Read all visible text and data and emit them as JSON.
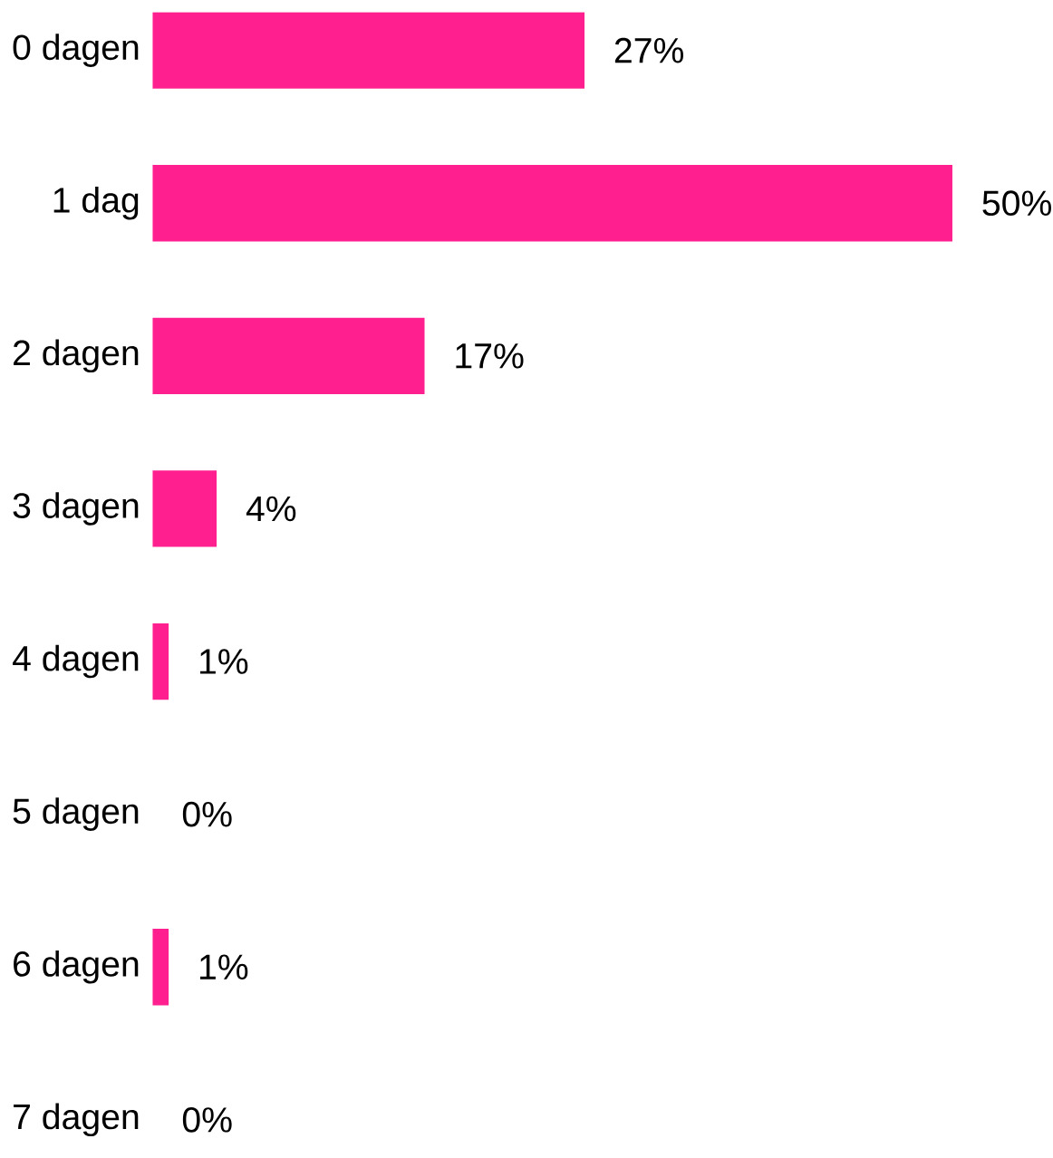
{
  "chart_data": {
    "type": "bar",
    "orientation": "horizontal",
    "categories": [
      "0 dagen",
      "1 dag",
      "2 dagen",
      "3 dagen",
      "4 dagen",
      "5 dagen",
      "6 dagen",
      "7 dagen"
    ],
    "values": [
      27,
      50,
      17,
      4,
      1,
      0,
      1,
      0
    ],
    "value_labels": [
      "27%",
      "50%",
      "17%",
      "4%",
      "1%",
      "0%",
      "1%",
      "0%"
    ],
    "color": "#ff1f8e"
  }
}
